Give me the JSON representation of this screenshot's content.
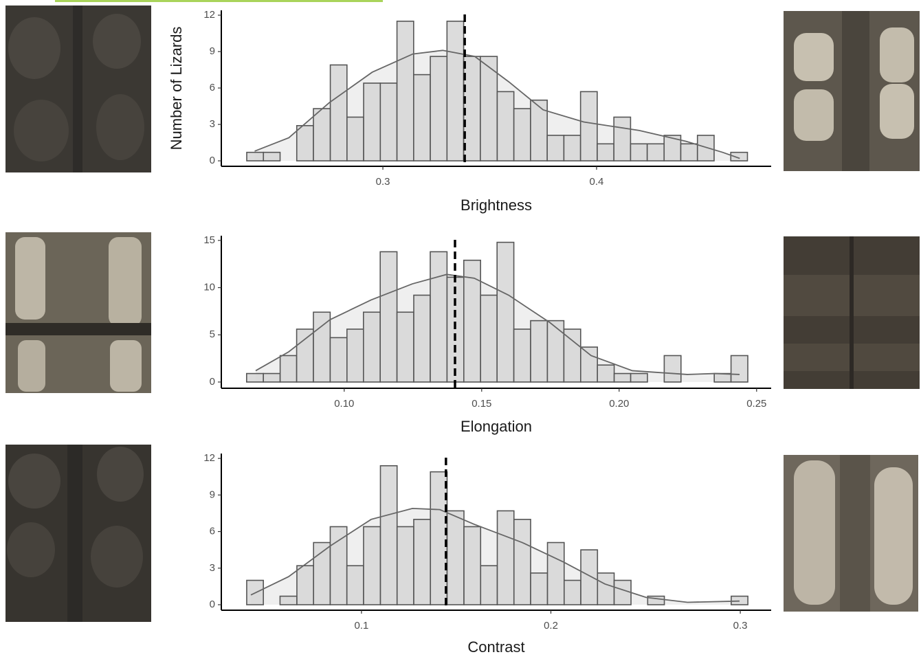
{
  "chart_data": [
    {
      "type": "histogram",
      "x_label": "Brightness",
      "y_label": "Number of Lizards",
      "bins": [
        0.2363,
        0.2441,
        0.2519,
        0.2597,
        0.2675,
        0.2754,
        0.2832,
        0.291,
        0.2988,
        0.3066,
        0.3144,
        0.3222,
        0.33,
        0.3378,
        0.3456,
        0.3535,
        0.3613,
        0.3691,
        0.3769,
        0.3847,
        0.3925,
        0.4003,
        0.4081,
        0.4159,
        0.4237,
        0.4316,
        0.4394,
        0.4472,
        0.455,
        0.4628,
        0.4706
      ],
      "values": [
        0.7,
        0.7,
        0,
        2.9,
        4.3,
        7.9,
        3.6,
        6.4,
        6.4,
        11.5,
        7.1,
        8.6,
        11.5,
        8.6,
        8.6,
        5.7,
        4.3,
        5.0,
        2.1,
        2.1,
        5.7,
        1.4,
        3.6,
        1.4,
        1.4,
        2.1,
        1.4,
        2.1,
        0,
        0.7
      ],
      "density": {
        "x": [
          0.24,
          0.256,
          0.275,
          0.295,
          0.314,
          0.328,
          0.343,
          0.359,
          0.375,
          0.394,
          0.42,
          0.442,
          0.459,
          0.467
        ],
        "values": [
          0.8,
          1.9,
          4.8,
          7.3,
          8.8,
          9.1,
          8.6,
          6.5,
          4.2,
          3.2,
          2.5,
          1.6,
          0.7,
          0.2
        ]
      },
      "mean": 0.3383,
      "color": "#d6d6d6",
      "density_color": "#efefef",
      "xlim": [
        0.2244,
        0.4817
      ],
      "ylim": [
        -0.45,
        12.4
      ],
      "xticks": [
        0.3,
        0.4
      ],
      "yticks": [
        0,
        3,
        6,
        9,
        12
      ]
    },
    {
      "type": "histogram",
      "x_label": "Elongation",
      "bins": [
        0.0645,
        0.0706,
        0.0767,
        0.0827,
        0.0888,
        0.0949,
        0.101,
        0.107,
        0.1131,
        0.1192,
        0.1253,
        0.1313,
        0.1374,
        0.1435,
        0.1496,
        0.1556,
        0.1617,
        0.1678,
        0.1739,
        0.1799,
        0.186,
        0.1921,
        0.1982,
        0.2042,
        0.2103,
        0.2164,
        0.2225,
        0.2285,
        0.2346,
        0.2407,
        0.2468
      ],
      "values": [
        0.9,
        0.9,
        2.8,
        5.6,
        7.4,
        4.7,
        5.6,
        7.4,
        13.8,
        7.4,
        9.2,
        13.8,
        11.1,
        12.9,
        9.2,
        14.8,
        5.6,
        6.5,
        6.5,
        5.6,
        3.7,
        1.8,
        0.9,
        0.9,
        0,
        2.8,
        0,
        0,
        0.9,
        2.8
      ],
      "density": {
        "x": [
          0.0678,
          0.0798,
          0.0948,
          0.1098,
          0.1248,
          0.1373,
          0.1473,
          0.1598,
          0.1748,
          0.1898,
          0.2048,
          0.2248,
          0.2348,
          0.2438
        ],
        "values": [
          1.2,
          3.2,
          6.6,
          8.7,
          10.4,
          11.4,
          11.0,
          9.2,
          6.3,
          2.8,
          1.2,
          0.8,
          0.9,
          0.8
        ]
      },
      "mean": 0.1403,
      "color": "#d6d6d6",
      "density_color": "#efefef",
      "xlim": [
        0.0553,
        0.2553
      ],
      "ylim": [
        -0.66,
        15.5
      ],
      "xticks": [
        {
          "value": 0.1,
          "label": "0.10"
        },
        {
          "value": 0.15,
          "label": "0.15"
        },
        {
          "value": 0.2,
          "label": "0.20"
        },
        {
          "value": 0.25,
          "label": "0.25"
        }
      ],
      "yticks": [
        0,
        5,
        10,
        15
      ]
    },
    {
      "type": "histogram",
      "x_label": "Contrast",
      "bins": [
        0.0394,
        0.0482,
        0.057,
        0.0659,
        0.0747,
        0.0835,
        0.0923,
        0.1011,
        0.11,
        0.1188,
        0.1276,
        0.1364,
        0.1452,
        0.1541,
        0.1629,
        0.1717,
        0.1805,
        0.1893,
        0.1982,
        0.207,
        0.2158,
        0.2246,
        0.2334,
        0.2423,
        0.2511,
        0.2599,
        0.2687,
        0.2775,
        0.2864,
        0.2952,
        0.304
      ],
      "values": [
        2.0,
        0,
        0.7,
        3.2,
        5.1,
        6.4,
        3.2,
        6.4,
        11.4,
        6.4,
        7.0,
        10.9,
        7.7,
        6.4,
        3.2,
        7.7,
        7.0,
        2.6,
        5.1,
        2.0,
        4.5,
        2.6,
        2.0,
        0,
        0.7,
        0,
        0,
        0,
        0,
        0.7
      ],
      "density": {
        "x": [
          0.0416,
          0.0615,
          0.0833,
          0.1051,
          0.1269,
          0.1414,
          0.1595,
          0.1849,
          0.2067,
          0.2285,
          0.2503,
          0.2721,
          0.2996
        ],
        "values": [
          0.8,
          2.3,
          4.8,
          7.0,
          7.9,
          7.8,
          6.6,
          5.1,
          3.5,
          1.7,
          0.6,
          0.2,
          0.3
        ]
      },
      "mean": 0.1446,
      "color": "#d6d6d6",
      "density_color": "#efefef",
      "xlim": [
        0.026,
        0.3163
      ],
      "ylim": [
        -0.45,
        12.4
      ],
      "xticks": [
        0.1,
        0.2,
        0.3
      ],
      "yticks": [
        0,
        3,
        6,
        9,
        12
      ]
    }
  ]
}
